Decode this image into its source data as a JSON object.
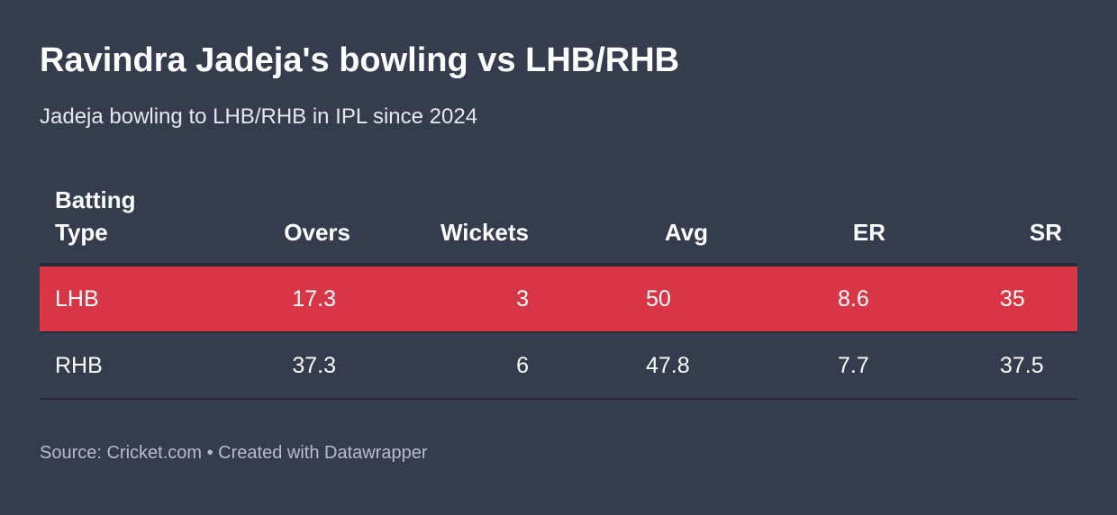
{
  "header": {
    "title": "Ravindra Jadeja's bowling vs LHB/RHB",
    "subtitle": "Jadeja bowling to LHB/RHB in IPL since 2024"
  },
  "table": {
    "columns": [
      "Batting Type",
      "Overs",
      "Wickets",
      "Avg",
      "ER",
      "SR"
    ],
    "rows": [
      [
        "LHB",
        17.3,
        3,
        50,
        8.6,
        35
      ],
      [
        "RHB",
        37.3,
        6,
        47.8,
        7.7,
        37.5
      ]
    ],
    "highlight_color": "#d83646"
  },
  "footer": {
    "source": "Source: Cricket.com • Created with Datawrapper"
  }
}
